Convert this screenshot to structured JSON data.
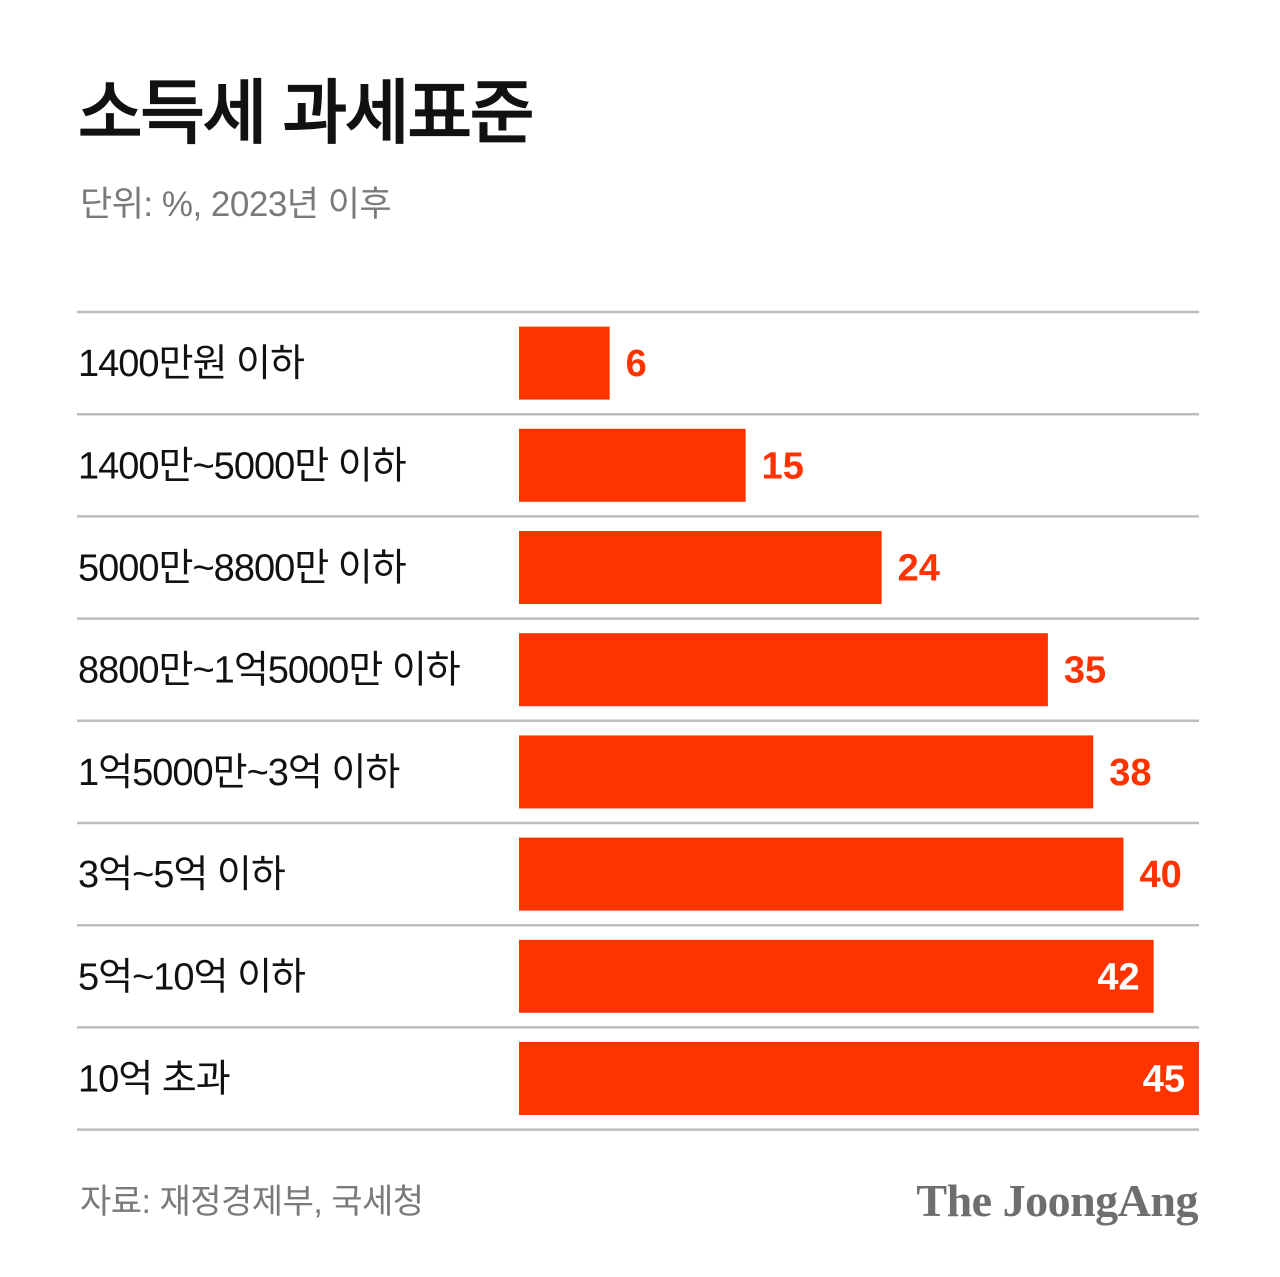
{
  "header": {
    "title": "소득세 과세표준",
    "subtitle": "단위: %, 2023년 이후"
  },
  "footer": {
    "source": "자료: 재정경제부, 국세청",
    "brand": "The JoongAng"
  },
  "colors": {
    "bar": "#ff3300",
    "value_outside": "#ff3300",
    "value_inside": "#ffffff",
    "divider": "#bdbdbd"
  },
  "chart_data": {
    "type": "bar",
    "orientation": "horizontal",
    "title": "소득세 과세표준",
    "subtitle": "단위: %, 2023년 이후",
    "categories": [
      "1400만원 이하",
      "1400만~5000만 이하",
      "5000만~8800만 이하",
      "8800만~1억5000만 이하",
      "1억5000만~3억 이하",
      "3억~5억 이하",
      "5억~10억 이하",
      "10억 초과"
    ],
    "values": [
      6,
      15,
      24,
      35,
      38,
      40,
      42,
      45
    ],
    "xlim": [
      0,
      45
    ],
    "grid": false,
    "legend": "none",
    "value_labels_inside_from": 42
  }
}
